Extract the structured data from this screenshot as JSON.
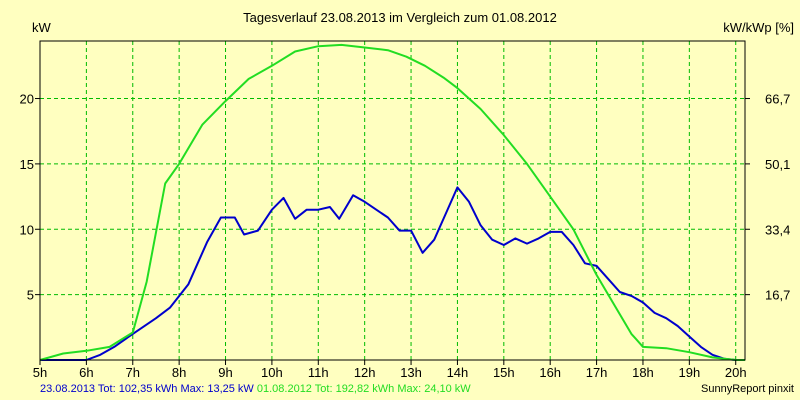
{
  "chart_data": {
    "type": "line",
    "title": "Tagesverlauf 23.08.2013 im Vergleich zum 01.08.2012",
    "ylabel_left": "kW",
    "ylabel_right": "kW/kWp [%]",
    "x_unit": "hour",
    "xlim": [
      5,
      20.2
    ],
    "xticks": [
      5,
      6,
      7,
      8,
      9,
      10,
      11,
      12,
      13,
      14,
      15,
      16,
      17,
      18,
      19,
      20
    ],
    "xtick_labels": [
      "5h",
      "6h",
      "7h",
      "8h",
      "9h",
      "10h",
      "11h",
      "12h",
      "13h",
      "14h",
      "15h",
      "16h",
      "17h",
      "18h",
      "19h",
      "20h"
    ],
    "ylim": [
      0,
      24.4
    ],
    "yticks": [
      5,
      10,
      15,
      20
    ],
    "yticks_right": [
      {
        "pos": 5,
        "label": "16,7"
      },
      {
        "pos": 10,
        "label": "33,4"
      },
      {
        "pos": 15,
        "label": "50,1"
      },
      {
        "pos": 20,
        "label": "66,7"
      }
    ],
    "grid": true,
    "series": [
      {
        "name": "23.08.2013",
        "color": "#0000CC",
        "x": [
          5.0,
          6.0,
          6.3,
          6.6,
          7.0,
          7.5,
          7.8,
          8.2,
          8.6,
          8.9,
          9.2,
          9.4,
          9.7,
          10.0,
          10.25,
          10.5,
          10.75,
          11.0,
          11.25,
          11.45,
          11.75,
          12.0,
          12.25,
          12.5,
          12.75,
          13.0,
          13.25,
          13.5,
          13.75,
          14.0,
          14.25,
          14.5,
          14.75,
          15.0,
          15.25,
          15.5,
          15.75,
          16.0,
          16.25,
          16.5,
          16.75,
          17.0,
          17.25,
          17.5,
          17.75,
          18.0,
          18.25,
          18.5,
          18.75,
          19.0,
          19.25,
          19.5,
          19.75,
          20.0,
          20.2
        ],
        "values": [
          0.0,
          0.0,
          0.4,
          1.0,
          2.0,
          3.2,
          4.0,
          5.8,
          9.0,
          10.9,
          10.9,
          9.6,
          9.9,
          11.5,
          12.4,
          10.8,
          11.5,
          11.5,
          11.7,
          10.8,
          12.6,
          12.1,
          11.5,
          10.9,
          9.9,
          9.9,
          8.2,
          9.2,
          11.2,
          13.2,
          12.1,
          10.3,
          9.2,
          8.8,
          9.3,
          8.9,
          9.3,
          9.8,
          9.8,
          8.8,
          7.4,
          7.2,
          6.2,
          5.2,
          4.9,
          4.4,
          3.6,
          3.2,
          2.6,
          1.8,
          1.0,
          0.4,
          0.1,
          0.0,
          0.0
        ],
        "total": "102,35",
        "max": "13,25"
      },
      {
        "name": "01.08.2012",
        "color": "#22DD22",
        "x": [
          5.0,
          5.5,
          6.0,
          6.5,
          7.0,
          7.3,
          7.7,
          8.0,
          8.5,
          9.0,
          9.5,
          10.0,
          10.5,
          11.0,
          11.5,
          12.0,
          12.5,
          12.9,
          13.3,
          13.7,
          14.0,
          14.5,
          15.0,
          15.5,
          16.0,
          16.5,
          17.0,
          17.5,
          17.75,
          18.0,
          18.5,
          19.0,
          19.5,
          20.0,
          20.2
        ],
        "values": [
          0.0,
          0.5,
          0.7,
          1.0,
          2.1,
          6.0,
          13.5,
          15.0,
          18.0,
          19.8,
          21.5,
          22.5,
          23.6,
          24.0,
          24.1,
          23.9,
          23.7,
          23.2,
          22.5,
          21.6,
          20.8,
          19.2,
          17.2,
          15.0,
          12.5,
          10.0,
          6.5,
          3.5,
          2.0,
          1.0,
          0.9,
          0.6,
          0.2,
          0.0,
          0.0
        ],
        "total": "192,82",
        "max": "24,10"
      }
    ],
    "footer_left_series1": "23.08.2013 Tot: 102,35 kWh Max: 13,25 kW",
    "footer_left_series2": "01.08.2012 Tot: 192,82 kWh Max: 24,10 kW",
    "footer_right": "SunnyReport pinxit",
    "colors": {
      "background": "#FFFFC0",
      "grid": "#00BB00",
      "series1": "#0000CC",
      "series2": "#22DD22"
    }
  }
}
